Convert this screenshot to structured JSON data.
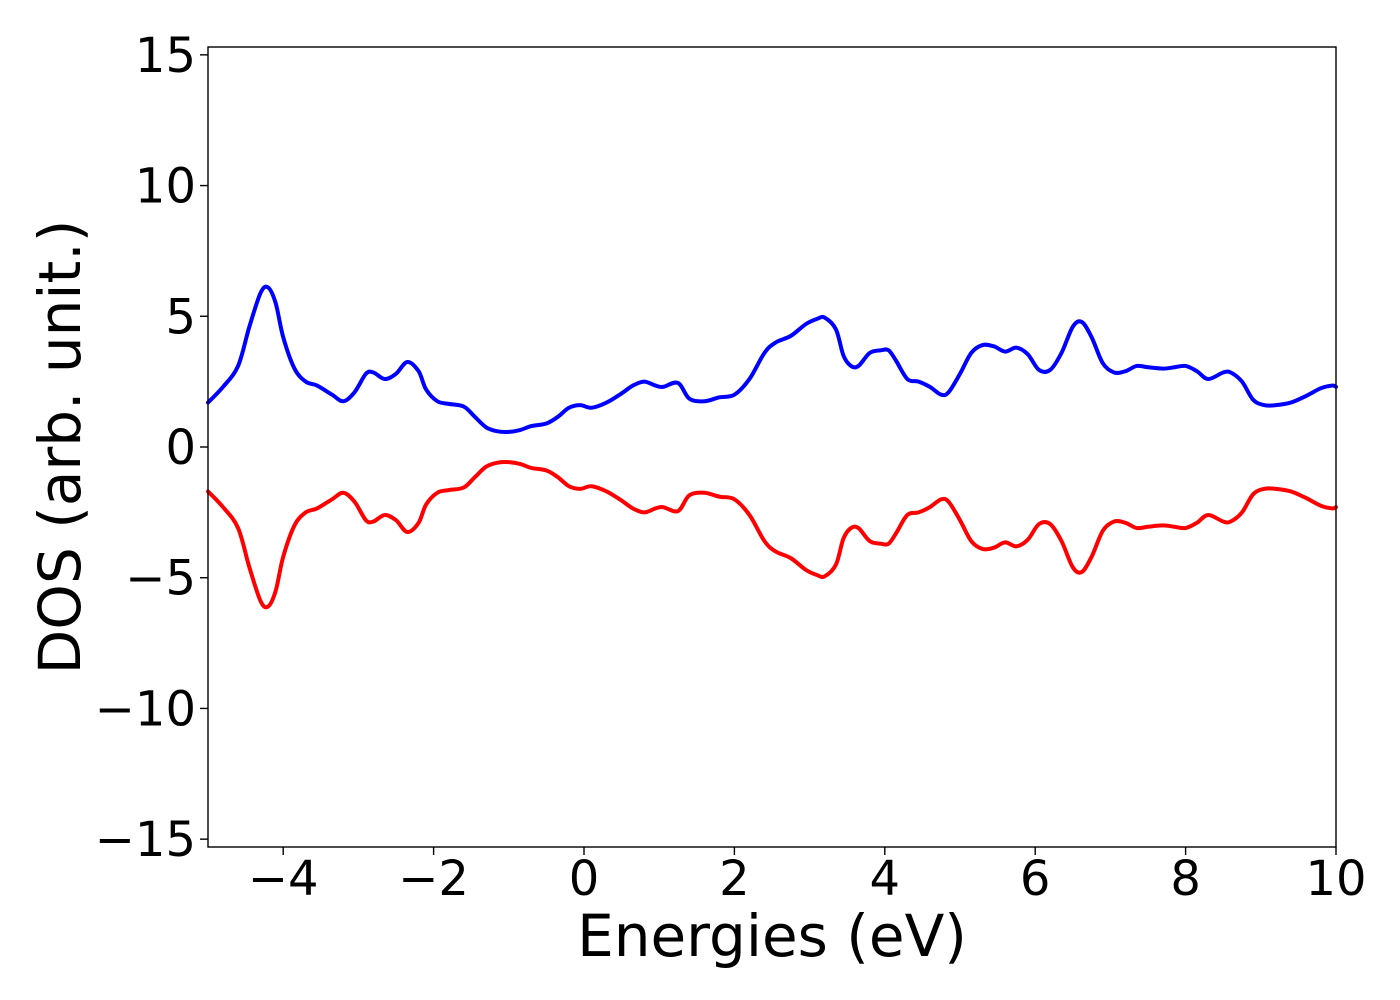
{
  "chart_data": {
    "type": "line",
    "title": "",
    "xlabel": "Energies (eV)",
    "ylabel": "DOS (arb. unit.)",
    "xlim": [
      -5,
      10
    ],
    "ylim": [
      -15.3,
      15.3
    ],
    "xticks": [
      -4,
      -2,
      0,
      2,
      4,
      6,
      8,
      10
    ],
    "xtick_labels": [
      "−4",
      "−2",
      "0",
      "2",
      "4",
      "6",
      "8",
      "10"
    ],
    "yticks": [
      -15,
      -10,
      -5,
      0,
      5,
      10,
      15
    ],
    "ytick_labels": [
      "−15",
      "−10",
      "−5",
      "0",
      "5",
      "10",
      "15"
    ],
    "grid": false,
    "legend": "none",
    "series": [
      {
        "color": "#0000ff",
        "x": [
          -5.0,
          -4.8,
          -4.6,
          -4.45,
          -4.3,
          -4.2,
          -4.1,
          -4.0,
          -3.85,
          -3.7,
          -3.55,
          -3.35,
          -3.2,
          -3.05,
          -2.9,
          -2.8,
          -2.65,
          -2.5,
          -2.35,
          -2.2,
          -2.1,
          -1.95,
          -1.8,
          -1.6,
          -1.45,
          -1.3,
          -1.15,
          -1.0,
          -0.85,
          -0.7,
          -0.5,
          -0.35,
          -0.2,
          -0.05,
          0.1,
          0.3,
          0.5,
          0.65,
          0.8,
          0.95,
          1.05,
          1.25,
          1.4,
          1.6,
          1.8,
          2.0,
          2.2,
          2.4,
          2.55,
          2.75,
          2.95,
          3.1,
          3.2,
          3.35,
          3.45,
          3.55,
          3.65,
          3.8,
          3.95,
          4.05,
          4.15,
          4.3,
          4.45,
          4.6,
          4.75,
          4.85,
          5.0,
          5.15,
          5.3,
          5.45,
          5.6,
          5.75,
          5.9,
          6.05,
          6.2,
          6.35,
          6.5,
          6.62,
          6.75,
          6.9,
          7.05,
          7.2,
          7.35,
          7.5,
          7.7,
          7.85,
          8.0,
          8.15,
          8.3,
          8.5,
          8.6,
          8.75,
          8.9,
          9.05,
          9.2,
          9.4,
          9.6,
          9.8,
          9.95,
          10.0
        ],
        "y": [
          1.7,
          2.3,
          3.1,
          4.6,
          5.9,
          6.1,
          5.5,
          4.2,
          3.0,
          2.5,
          2.35,
          2.0,
          1.75,
          2.1,
          2.8,
          2.85,
          2.6,
          2.8,
          3.25,
          2.9,
          2.2,
          1.75,
          1.65,
          1.55,
          1.15,
          0.75,
          0.6,
          0.58,
          0.65,
          0.8,
          0.9,
          1.15,
          1.5,
          1.6,
          1.5,
          1.7,
          2.05,
          2.35,
          2.5,
          2.35,
          2.3,
          2.45,
          1.85,
          1.75,
          1.9,
          2.0,
          2.6,
          3.6,
          4.0,
          4.25,
          4.7,
          4.9,
          4.95,
          4.5,
          3.5,
          3.1,
          3.1,
          3.6,
          3.7,
          3.7,
          3.3,
          2.6,
          2.5,
          2.3,
          2.0,
          2.1,
          2.8,
          3.6,
          3.9,
          3.85,
          3.65,
          3.8,
          3.55,
          2.95,
          2.95,
          3.6,
          4.6,
          4.78,
          4.2,
          3.2,
          2.85,
          2.9,
          3.1,
          3.05,
          3.0,
          3.05,
          3.1,
          2.9,
          2.6,
          2.85,
          2.85,
          2.5,
          1.8,
          1.6,
          1.6,
          1.7,
          1.95,
          2.25,
          2.35,
          2.3
        ]
      },
      {
        "color": "#ff0000",
        "x": [
          -5.0,
          -4.8,
          -4.6,
          -4.45,
          -4.3,
          -4.2,
          -4.1,
          -4.0,
          -3.85,
          -3.7,
          -3.55,
          -3.35,
          -3.2,
          -3.05,
          -2.9,
          -2.8,
          -2.65,
          -2.5,
          -2.35,
          -2.2,
          -2.1,
          -1.95,
          -1.8,
          -1.6,
          -1.45,
          -1.3,
          -1.15,
          -1.0,
          -0.85,
          -0.7,
          -0.5,
          -0.35,
          -0.2,
          -0.05,
          0.1,
          0.3,
          0.5,
          0.65,
          0.8,
          0.95,
          1.05,
          1.25,
          1.4,
          1.6,
          1.8,
          2.0,
          2.2,
          2.4,
          2.55,
          2.75,
          2.95,
          3.1,
          3.2,
          3.35,
          3.45,
          3.55,
          3.65,
          3.8,
          3.95,
          4.05,
          4.15,
          4.3,
          4.45,
          4.6,
          4.75,
          4.85,
          5.0,
          5.15,
          5.3,
          5.45,
          5.6,
          5.75,
          5.9,
          6.05,
          6.2,
          6.35,
          6.5,
          6.62,
          6.75,
          6.9,
          7.05,
          7.2,
          7.35,
          7.5,
          7.7,
          7.85,
          8.0,
          8.15,
          8.3,
          8.5,
          8.6,
          8.75,
          8.9,
          9.05,
          9.2,
          9.4,
          9.6,
          9.8,
          9.95,
          10.0
        ],
        "y": [
          -1.7,
          -2.3,
          -3.1,
          -4.6,
          -5.9,
          -6.1,
          -5.5,
          -4.2,
          -3.0,
          -2.5,
          -2.35,
          -2.0,
          -1.75,
          -2.1,
          -2.8,
          -2.85,
          -2.6,
          -2.8,
          -3.25,
          -2.9,
          -2.2,
          -1.75,
          -1.65,
          -1.55,
          -1.15,
          -0.75,
          -0.6,
          -0.58,
          -0.65,
          -0.8,
          -0.9,
          -1.15,
          -1.5,
          -1.6,
          -1.5,
          -1.7,
          -2.05,
          -2.35,
          -2.5,
          -2.35,
          -2.3,
          -2.45,
          -1.85,
          -1.75,
          -1.9,
          -2.0,
          -2.6,
          -3.6,
          -4.0,
          -4.25,
          -4.7,
          -4.9,
          -4.95,
          -4.5,
          -3.5,
          -3.1,
          -3.1,
          -3.6,
          -3.7,
          -3.7,
          -3.3,
          -2.6,
          -2.5,
          -2.3,
          -2.0,
          -2.1,
          -2.8,
          -3.6,
          -3.9,
          -3.85,
          -3.65,
          -3.8,
          -3.55,
          -2.95,
          -2.95,
          -3.6,
          -4.6,
          -4.78,
          -4.2,
          -3.2,
          -2.85,
          -2.9,
          -3.1,
          -3.05,
          -3.0,
          -3.05,
          -3.1,
          -2.9,
          -2.6,
          -2.85,
          -2.85,
          -2.5,
          -1.8,
          -1.6,
          -1.6,
          -1.7,
          -1.95,
          -2.25,
          -2.35,
          -2.3
        ]
      }
    ]
  }
}
